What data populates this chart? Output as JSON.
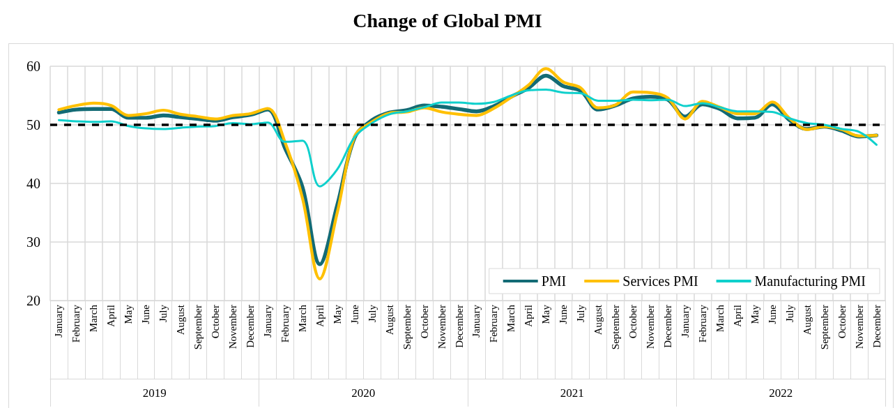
{
  "chart_data": {
    "type": "line",
    "title": "Change of Global PMI",
    "categories": [
      "January",
      "February",
      "March",
      "April",
      "May",
      "June",
      "July",
      "August",
      "September",
      "October",
      "November",
      "December",
      "January",
      "February",
      "March",
      "April",
      "May",
      "June",
      "July",
      "August",
      "September",
      "October",
      "November",
      "December",
      "January",
      "February",
      "March",
      "April",
      "May",
      "June",
      "July",
      "August",
      "September",
      "October",
      "November",
      "December",
      "January",
      "February",
      "March",
      "April",
      "May",
      "June",
      "July",
      "August",
      "September",
      "October",
      "November",
      "December"
    ],
    "annotations": [
      "2019",
      "2020",
      "2021",
      "2022"
    ],
    "series": [
      {
        "name": "PMI",
        "color": "#136b75",
        "values": [
          52.1,
          52.6,
          52.7,
          52.7,
          51.2,
          51.2,
          51.6,
          51.3,
          51.0,
          50.7,
          51.3,
          51.7,
          52.6,
          46.0,
          39.4,
          26.2,
          36.3,
          47.8,
          50.8,
          52.1,
          52.5,
          53.3,
          53.1,
          52.7,
          52.3,
          53.2,
          54.8,
          56.3,
          58.4,
          56.6,
          55.8,
          52.6,
          53.3,
          54.5,
          54.8,
          54.3,
          51.4,
          53.5,
          52.7,
          51.1,
          51.2,
          53.5,
          50.8,
          49.3,
          49.7,
          49.0,
          48.0,
          48.2
        ]
      },
      {
        "name": "Services PMI",
        "color": "#ffc000",
        "values": [
          52.6,
          53.3,
          53.7,
          53.3,
          51.6,
          51.9,
          52.5,
          51.8,
          51.4,
          51.0,
          51.6,
          51.9,
          52.8,
          47.0,
          37.5,
          23.7,
          35.0,
          48.0,
          50.5,
          52.0,
          52.2,
          52.9,
          52.2,
          51.8,
          51.6,
          52.8,
          54.7,
          56.8,
          59.6,
          57.3,
          56.3,
          52.9,
          53.4,
          55.6,
          55.5,
          54.6,
          51.0,
          54.0,
          53.0,
          51.9,
          51.9,
          53.9,
          51.1,
          49.2,
          49.7,
          49.2,
          48.1,
          48.2
        ]
      },
      {
        "name": "Manufacturing PMI",
        "color": "#0fd0cc",
        "values": [
          50.8,
          50.6,
          50.5,
          50.6,
          49.8,
          49.4,
          49.3,
          49.5,
          49.7,
          49.8,
          50.3,
          50.1,
          50.4,
          47.1,
          47.3,
          39.5,
          42.4,
          47.9,
          50.3,
          51.8,
          52.3,
          53.0,
          53.8,
          53.8,
          53.6,
          53.9,
          55.0,
          55.9,
          56.0,
          55.5,
          55.4,
          54.1,
          54.1,
          54.3,
          54.2,
          54.3,
          53.2,
          53.7,
          53.0,
          52.3,
          52.3,
          52.2,
          51.1,
          50.3,
          50.0,
          49.3,
          48.8,
          46.6
        ]
      }
    ],
    "ylim": [
      20,
      60
    ],
    "yticks": [
      20,
      30,
      40,
      50,
      60
    ],
    "ref_lines": [
      {
        "axis": "y",
        "value": 50,
        "color": "#000000",
        "line_style": "dashed"
      }
    ],
    "grid": true,
    "legend": "bottom right",
    "marker": "none",
    "line_style": "solid"
  }
}
